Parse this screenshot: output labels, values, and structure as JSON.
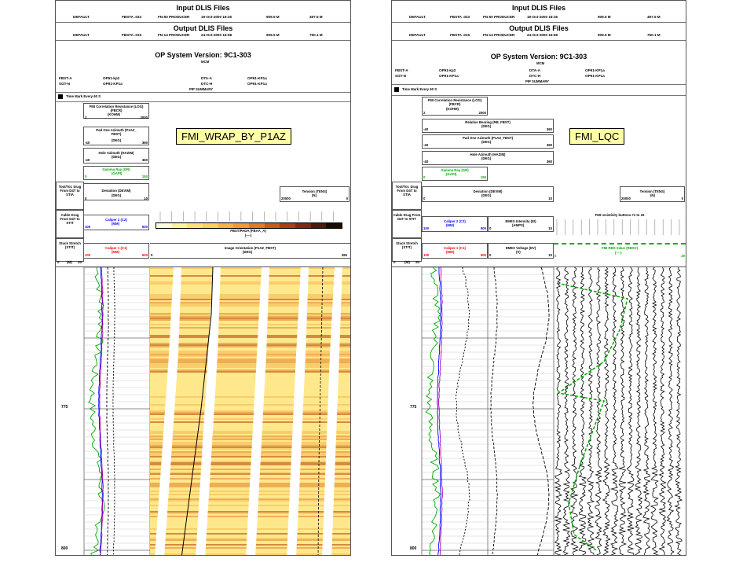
{
  "input_files_title": "Input DLIS Files",
  "output_files_title": "Output DLIS Files",
  "left": {
    "input_row": [
      "DEFAULT",
      "FBSTA .033",
      "FN:50 PRODUCER",
      "19-Oct-2000 19:26",
      "909.5 M",
      "497.5 M"
    ],
    "output_row": [
      "DEFAULT",
      "FBSTA .015",
      "FN:14 PRODUCER",
      "24-Oct-2000 16:58",
      "909.5 M",
      "750.1 M"
    ],
    "op_system": "OP System Version: 9C1-303",
    "mcm": "MCM",
    "tools": [
      [
        "FBST-A",
        "OP91-kp2",
        "DTA-A",
        "OP91-KP1a"
      ],
      [
        "SGT-N",
        "OP91-KP1a",
        "DTC-H",
        "OP91-KP1a"
      ]
    ],
    "pip_summary": "PIP SUMMARY",
    "time_mark": "Time Mark Every  60 S",
    "tag": "FMI_WRAP_BY_P1AZ",
    "curves": [
      {
        "name": "FMI Correlation Resistance (LOG) (FBCR)",
        "unit": "(KOHM)",
        "min": "2",
        "max": "2000",
        "color": "black"
      },
      {
        "name": "Pad One Azimuth (P1AZ_ FBST)",
        "unit": "(DEG)",
        "min": "-40",
        "max": "360",
        "color": "black"
      },
      {
        "name": "Hole Azimuth (HAZIM)",
        "unit": "(DEG)",
        "min": "-40",
        "max": "360",
        "color": "black"
      },
      {
        "name": "Gamma Ray (GR)",
        "unit": "(GAPI)",
        "min": "0",
        "max": "150",
        "color": "green"
      }
    ],
    "tooltot": "Tool/Tot. Drag From D4T to STIA",
    "deviation": {
      "name": "Deviation (DEVIM)",
      "unit": "(DEG)",
      "min": "0",
      "max": "10"
    },
    "tension": {
      "name": "Tension (TENS)",
      "unit": "(N)",
      "min": "20000",
      "max": "0"
    },
    "cable": "Cable Drag From D4T to STIT",
    "caliper2": {
      "name": "Caliper 2 (C2)",
      "unit": "(MM)",
      "min": "100",
      "max": "500"
    },
    "fbst_pada": "FBST/PADA (FBAA_A)",
    "fbst_unit": "(----)",
    "stuck": "Stuck Stretch (STIT)",
    "caliper1": {
      "name": "Caliper 1 (C1)",
      "unit": "(MM)",
      "min": "100",
      "max": "500"
    },
    "image_orientation": {
      "name": "Image Orientation (P1AZ_FBST)",
      "unit": "(DEG)",
      "min": "0",
      "max": "360"
    },
    "depth_hdr": [
      "0",
      "(M)",
      "20"
    ]
  },
  "right": {
    "input_row": [
      "DEFAULT",
      "FBSTA .033",
      "FN:50 PRODUCER",
      "19-Oct-2000 19:26",
      "909.5 M",
      "497.5 M"
    ],
    "output_row": [
      "DEFAULT",
      "FBSTA .015",
      "FN:14 PRODUCER",
      "24-Oct-2000 16:59",
      "909.5 M",
      "750.1 M"
    ],
    "op_system": "OP System Version: 9C1-303",
    "mcm": "MCM",
    "tools": [
      [
        "FBST-A",
        "OP91-kp2",
        "DTA-A",
        "OP91-KP1a"
      ],
      [
        "SGT-N",
        "OP91-KP1a",
        "DTC-H",
        "OP91-KP1a"
      ]
    ],
    "pip_summary": "PIP SUMMARY",
    "time_mark": "Time Mark Every  60 S",
    "tag": "FMI_LQC",
    "curves": [
      {
        "name": "FMI Correlation Resistance (LOG) (FBCR)",
        "unit": "(KOHM)",
        "min": "2",
        "max": "2000",
        "color": "black"
      },
      {
        "name": "Relative Bearing (RB_FBST)",
        "unit": "(DEG)",
        "min": "-40",
        "max": "360",
        "color": "black"
      },
      {
        "name": "Pad One Azimuth (P1AZ_FBST)",
        "unit": "(DEG)",
        "min": "-40",
        "max": "360",
        "color": "black"
      },
      {
        "name": "Hole Azimuth (HAZIM)",
        "unit": "(DEG)",
        "min": "-40",
        "max": "360",
        "color": "black"
      },
      {
        "name": "Gamma Ray (GR)",
        "unit": "(GAPI)",
        "min": "0",
        "max": "150",
        "color": "green"
      }
    ],
    "tooltot": "Tool/Tot. Drag From D4T to STIA",
    "deviation": {
      "name": "Deviation (DEVIM)",
      "unit": "(DEG)",
      "min": "0",
      "max": "10"
    },
    "tension": {
      "name": "Tension (TENS)",
      "unit": "(N)",
      "min": "20000",
      "max": "0"
    },
    "cable": "Cable Drag From D4T to STIT",
    "caliper2": {
      "name": "Caliper 2 (C2)",
      "unit": "(MM)",
      "min": "100",
      "max": "500"
    },
    "emex_i": {
      "name": "EMEX Intensity (EI)",
      "unit": "(AMPS)",
      "min": "0",
      "max": "10"
    },
    "fmi_buttons": "FMI resistivity buttons #1 to 16",
    "stuck": "Stuck Stretch (STIT)",
    "caliper1": {
      "name": "Caliper 1 (C1)",
      "unit": "(MM)",
      "min": "100",
      "max": "500"
    },
    "emex_v": {
      "name": "EMEX Voltage (EV)",
      "unit": "(V)",
      "min": "0",
      "max": "10"
    },
    "rbs": {
      "name": "FMI RBS Value (RBSV)",
      "unit": "(----)",
      "min": "0",
      "max": "20"
    },
    "depth_hdr": [
      "0",
      "(M)",
      "20"
    ]
  },
  "depth_marks": [
    "775",
    "800"
  ],
  "colors": {
    "green": "#00aa00",
    "blue": "#0000ff",
    "red": "#ee0000",
    "tag_bg": "#ffffa6"
  }
}
